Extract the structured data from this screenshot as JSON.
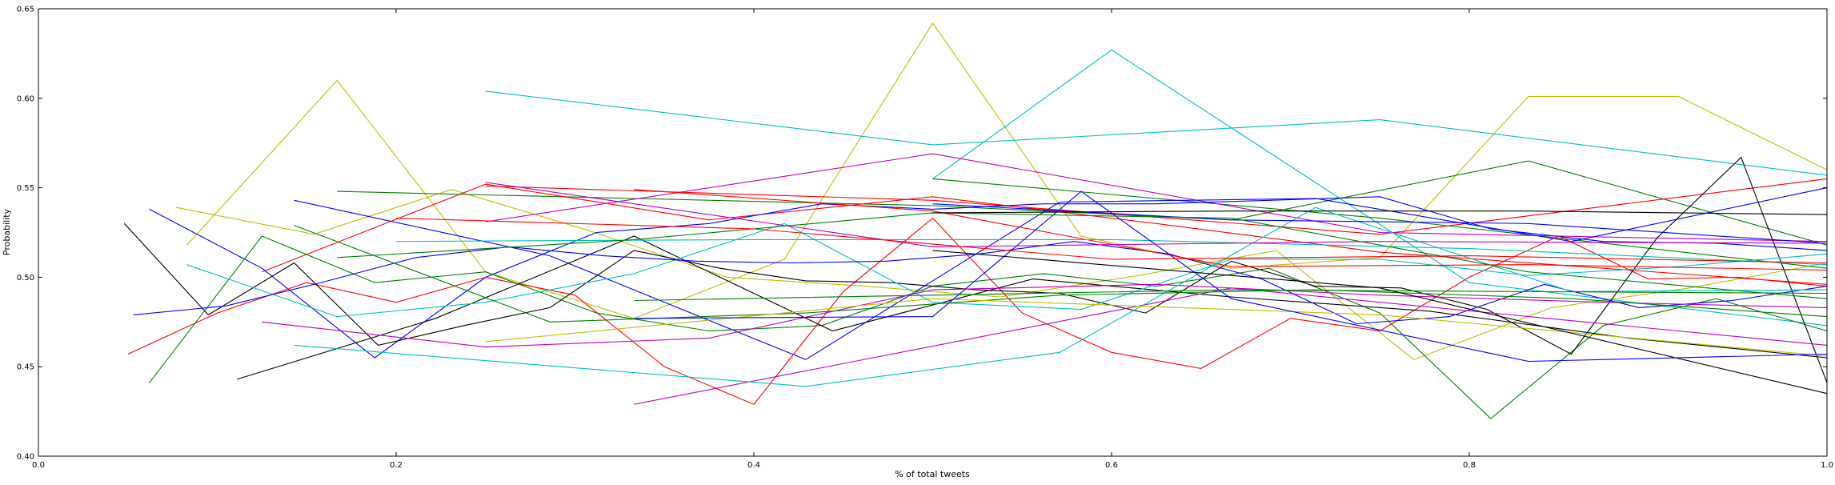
{
  "chart_data": {
    "type": "line",
    "title": "",
    "xlabel": "% of total tweets",
    "ylabel": "Probability",
    "xlim": [
      0.0,
      1.0
    ],
    "ylim": [
      0.4,
      0.65
    ],
    "x_ticks": [
      "0.0",
      "0.2",
      "0.4",
      "0.6",
      "0.8",
      "1.0"
    ],
    "y_ticks": [
      "0.40",
      "0.45",
      "0.50",
      "0.55",
      "0.60",
      "0.65"
    ],
    "grid": false,
    "legend": "none",
    "series": [
      {
        "color": "#bfbf00",
        "points": [
          [
            0.083,
            0.518
          ],
          [
            0.167,
            0.61
          ],
          [
            0.25,
            0.503
          ],
          [
            0.333,
            0.477
          ],
          [
            0.417,
            0.51
          ],
          [
            0.5,
            0.642
          ],
          [
            0.583,
            0.523
          ],
          [
            0.667,
            0.505
          ],
          [
            0.75,
            0.511
          ],
          [
            0.833,
            0.601
          ],
          [
            0.917,
            0.601
          ],
          [
            1.0,
            0.56
          ]
        ]
      },
      {
        "color": "#00bfbf",
        "points": [
          [
            0.25,
            0.604
          ],
          [
            0.5,
            0.574
          ],
          [
            0.75,
            0.588
          ],
          [
            1.0,
            0.557
          ]
        ]
      },
      {
        "color": "#00bfbf",
        "points": [
          [
            0.5,
            0.555
          ],
          [
            0.6,
            0.627
          ],
          [
            0.8,
            0.497
          ],
          [
            1.0,
            0.473
          ]
        ]
      },
      {
        "color": "#bfbf00",
        "points": [
          [
            0.077,
            0.539
          ],
          [
            0.154,
            0.524
          ],
          [
            0.231,
            0.549
          ],
          [
            0.308,
            0.526
          ],
          [
            0.385,
            0.5
          ],
          [
            0.462,
            0.495
          ],
          [
            0.538,
            0.489
          ],
          [
            0.615,
            0.501
          ],
          [
            0.692,
            0.515
          ],
          [
            0.769,
            0.454
          ],
          [
            0.846,
            0.483
          ],
          [
            0.923,
            0.494
          ],
          [
            1.0,
            0.508
          ]
        ]
      },
      {
        "color": "#008000",
        "points": [
          [
            0.167,
            0.548
          ],
          [
            0.333,
            0.544
          ],
          [
            0.5,
            0.54
          ],
          [
            0.667,
            0.532
          ],
          [
            0.833,
            0.565
          ],
          [
            1.0,
            0.518
          ]
        ]
      },
      {
        "color": "#008000",
        "points": [
          [
            0.5,
            0.555
          ],
          [
            0.75,
            0.533
          ],
          [
            1.0,
            0.505
          ]
        ]
      },
      {
        "color": "#ff0000",
        "points": [
          [
            0.25,
            0.551
          ],
          [
            0.5,
            0.543
          ],
          [
            0.75,
            0.524
          ],
          [
            1.0,
            0.555
          ]
        ]
      },
      {
        "color": "#ff0000",
        "points": [
          [
            0.125,
            0.503
          ],
          [
            0.25,
            0.552
          ],
          [
            0.375,
            0.532
          ],
          [
            0.5,
            0.545
          ],
          [
            0.625,
            0.53
          ],
          [
            0.75,
            0.514
          ],
          [
            0.875,
            0.505
          ],
          [
            1.0,
            0.496
          ]
        ]
      },
      {
        "color": "#bf00bf",
        "points": [
          [
            0.25,
            0.531
          ],
          [
            0.5,
            0.569
          ],
          [
            0.75,
            0.525
          ],
          [
            1.0,
            0.52
          ]
        ]
      },
      {
        "color": "#0000ff",
        "points": [
          [
            0.143,
            0.543
          ],
          [
            0.286,
            0.512
          ],
          [
            0.429,
            0.454
          ],
          [
            0.571,
            0.542
          ],
          [
            0.714,
            0.544
          ],
          [
            0.857,
            0.52
          ],
          [
            1.0,
            0.55
          ]
        ]
      },
      {
        "color": "#0000ff",
        "points": [
          [
            0.062,
            0.538
          ],
          [
            0.125,
            0.505
          ],
          [
            0.188,
            0.455
          ],
          [
            0.25,
            0.5
          ],
          [
            0.312,
            0.525
          ],
          [
            0.375,
            0.53
          ],
          [
            0.438,
            0.541
          ],
          [
            0.5,
            0.538
          ],
          [
            0.562,
            0.541
          ],
          [
            0.625,
            0.541
          ],
          [
            0.688,
            0.543
          ],
          [
            0.75,
            0.545
          ],
          [
            0.812,
            0.527
          ],
          [
            0.875,
            0.52
          ],
          [
            0.938,
            0.519
          ],
          [
            1.0,
            0.515
          ]
        ]
      },
      {
        "color": "#ff0000",
        "points": [
          [
            0.05,
            0.457
          ],
          [
            0.1,
            0.48
          ],
          [
            0.15,
            0.497
          ],
          [
            0.2,
            0.486
          ],
          [
            0.25,
            0.5
          ],
          [
            0.3,
            0.49
          ],
          [
            0.35,
            0.45
          ],
          [
            0.4,
            0.429
          ],
          [
            0.45,
            0.492
          ],
          [
            0.5,
            0.533
          ],
          [
            0.55,
            0.48
          ],
          [
            0.6,
            0.458
          ],
          [
            0.65,
            0.449
          ],
          [
            0.7,
            0.477
          ],
          [
            0.75,
            0.47
          ],
          [
            0.8,
            0.5
          ],
          [
            0.85,
            0.523
          ],
          [
            0.9,
            0.499
          ],
          [
            0.95,
            0.5
          ],
          [
            1.0,
            0.495
          ]
        ]
      },
      {
        "color": "#008000",
        "points": [
          [
            0.062,
            0.441
          ],
          [
            0.125,
            0.523
          ],
          [
            0.188,
            0.497
          ],
          [
            0.25,
            0.503
          ],
          [
            0.312,
            0.48
          ],
          [
            0.375,
            0.47
          ],
          [
            0.438,
            0.473
          ],
          [
            0.5,
            0.495
          ],
          [
            0.562,
            0.502
          ],
          [
            0.625,
            0.495
          ],
          [
            0.688,
            0.505
          ],
          [
            0.75,
            0.48
          ],
          [
            0.812,
            0.421
          ],
          [
            0.875,
            0.473
          ],
          [
            0.938,
            0.488
          ],
          [
            1.0,
            0.47
          ]
        ]
      },
      {
        "color": "#000000",
        "points": [
          [
            0.048,
            0.53
          ],
          [
            0.095,
            0.479
          ],
          [
            0.143,
            0.508
          ],
          [
            0.19,
            0.462
          ],
          [
            0.238,
            0.473
          ],
          [
            0.286,
            0.483
          ],
          [
            0.333,
            0.515
          ],
          [
            0.381,
            0.505
          ],
          [
            0.429,
            0.498
          ],
          [
            0.476,
            0.497
          ],
          [
            0.524,
            0.493
          ],
          [
            0.571,
            0.491
          ],
          [
            0.619,
            0.48
          ],
          [
            0.667,
            0.509
          ],
          [
            0.714,
            0.495
          ],
          [
            0.762,
            0.494
          ],
          [
            0.81,
            0.482
          ],
          [
            0.857,
            0.457
          ],
          [
            0.905,
            0.522
          ],
          [
            0.952,
            0.567
          ],
          [
            1.0,
            0.441
          ]
        ]
      },
      {
        "color": "#000000",
        "points": [
          [
            0.111,
            0.443
          ],
          [
            0.222,
            0.477
          ],
          [
            0.333,
            0.523
          ],
          [
            0.444,
            0.47
          ],
          [
            0.556,
            0.499
          ],
          [
            0.667,
            0.489
          ],
          [
            0.778,
            0.481
          ],
          [
            0.889,
            0.466
          ],
          [
            1.0,
            0.455
          ]
        ]
      },
      {
        "color": "#00bfbf",
        "points": [
          [
            0.083,
            0.507
          ],
          [
            0.167,
            0.478
          ],
          [
            0.25,
            0.486
          ],
          [
            0.333,
            0.502
          ],
          [
            0.417,
            0.53
          ],
          [
            0.5,
            0.486
          ],
          [
            0.583,
            0.482
          ],
          [
            0.667,
            0.51
          ],
          [
            0.75,
            0.51
          ],
          [
            0.833,
            0.501
          ],
          [
            0.917,
            0.506
          ],
          [
            1.0,
            0.513
          ]
        ]
      },
      {
        "color": "#0000ff",
        "points": [
          [
            0.053,
            0.479
          ],
          [
            0.105,
            0.484
          ],
          [
            0.158,
            0.497
          ],
          [
            0.211,
            0.511
          ],
          [
            0.263,
            0.517
          ],
          [
            0.316,
            0.512
          ],
          [
            0.368,
            0.509
          ],
          [
            0.421,
            0.508
          ],
          [
            0.474,
            0.509
          ],
          [
            0.526,
            0.513
          ],
          [
            0.579,
            0.52
          ],
          [
            0.632,
            0.513
          ],
          [
            0.684,
            0.499
          ],
          [
            0.737,
            0.474
          ],
          [
            0.789,
            0.478
          ],
          [
            0.842,
            0.496
          ],
          [
            0.895,
            0.483
          ],
          [
            0.947,
            0.487
          ],
          [
            1.0,
            0.495
          ]
        ]
      },
      {
        "color": "#bf00bf",
        "points": [
          [
            0.125,
            0.475
          ],
          [
            0.25,
            0.461
          ],
          [
            0.375,
            0.466
          ],
          [
            0.5,
            0.493
          ],
          [
            0.625,
            0.496
          ],
          [
            0.75,
            0.49
          ],
          [
            0.875,
            0.486
          ],
          [
            1.0,
            0.483
          ]
        ]
      },
      {
        "color": "#bf00bf",
        "points": [
          [
            0.333,
            0.429
          ],
          [
            0.667,
            0.494
          ],
          [
            1.0,
            0.462
          ]
        ]
      },
      {
        "color": "#00bfbf",
        "points": [
          [
            0.143,
            0.462
          ],
          [
            0.429,
            0.439
          ],
          [
            0.571,
            0.458
          ],
          [
            0.714,
            0.539
          ],
          [
            0.857,
            0.492
          ],
          [
            1.0,
            0.493
          ]
        ]
      },
      {
        "color": "#008000",
        "points": [
          [
            0.143,
            0.529
          ],
          [
            0.286,
            0.475
          ],
          [
            0.429,
            0.48
          ],
          [
            0.571,
            0.49
          ],
          [
            0.714,
            0.493
          ],
          [
            0.857,
            0.488
          ],
          [
            1.0,
            0.478
          ]
        ]
      },
      {
        "color": "#ff0000",
        "points": [
          [
            0.333,
            0.549
          ],
          [
            0.5,
            0.537
          ],
          [
            0.667,
            0.506
          ],
          [
            0.833,
            0.507
          ],
          [
            1.0,
            0.504
          ]
        ]
      },
      {
        "color": "#0000ff",
        "points": [
          [
            0.5,
            0.541
          ],
          [
            0.667,
            0.532
          ],
          [
            0.833,
            0.53
          ],
          [
            1.0,
            0.519
          ]
        ]
      },
      {
        "color": "#bfbf00",
        "points": [
          [
            0.25,
            0.464
          ],
          [
            0.5,
            0.488
          ],
          [
            0.75,
            0.479
          ],
          [
            1.0,
            0.456
          ]
        ]
      },
      {
        "color": "#008000",
        "points": [
          [
            0.333,
            0.487
          ],
          [
            0.667,
            0.493
          ],
          [
            1.0,
            0.491
          ]
        ]
      },
      {
        "color": "#000000",
        "points": [
          [
            0.5,
            0.515
          ],
          [
            0.75,
            0.494
          ],
          [
            1.0,
            0.435
          ]
        ]
      },
      {
        "color": "#00bfbf",
        "points": [
          [
            0.2,
            0.52
          ],
          [
            0.4,
            0.521
          ],
          [
            0.6,
            0.521
          ],
          [
            0.8,
            0.516
          ],
          [
            1.0,
            0.507
          ]
        ]
      },
      {
        "color": "#0000ff",
        "points": [
          [
            0.333,
            0.477
          ],
          [
            0.5,
            0.478
          ],
          [
            0.583,
            0.548
          ],
          [
            0.667,
            0.488
          ],
          [
            0.833,
            0.453
          ],
          [
            1.0,
            0.457
          ]
        ]
      },
      {
        "color": "#bf00bf",
        "points": [
          [
            0.25,
            0.553
          ],
          [
            0.5,
            0.517
          ],
          [
            0.75,
            0.52
          ],
          [
            1.0,
            0.519
          ]
        ]
      },
      {
        "color": "#008000",
        "points": [
          [
            0.167,
            0.511
          ],
          [
            0.333,
            0.521
          ],
          [
            0.5,
            0.536
          ],
          [
            0.667,
            0.533
          ],
          [
            0.833,
            0.503
          ],
          [
            1.0,
            0.488
          ]
        ]
      },
      {
        "color": "#000000",
        "points": [
          [
            0.5,
            0.536
          ],
          [
            0.667,
            0.537
          ],
          [
            0.833,
            0.537
          ],
          [
            1.0,
            0.535
          ]
        ]
      },
      {
        "color": "#ff0000",
        "points": [
          [
            0.2,
            0.533
          ],
          [
            0.4,
            0.527
          ],
          [
            0.6,
            0.51
          ],
          [
            0.8,
            0.512
          ],
          [
            1.0,
            0.508
          ]
        ]
      }
    ]
  }
}
